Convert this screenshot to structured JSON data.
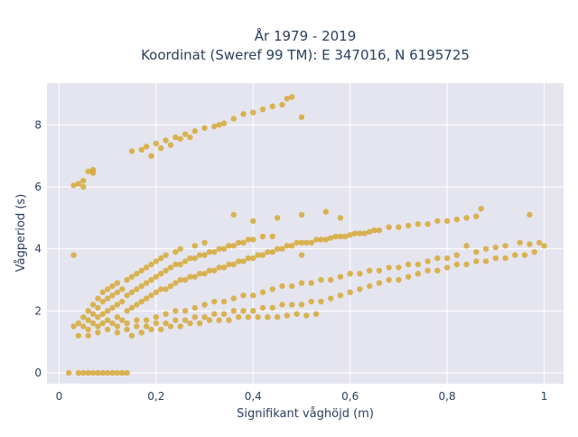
{
  "chart_data": {
    "type": "scatter",
    "title": "År 1979 - 2019",
    "subtitle": "Koordinat (Sweref 99 TM): E 347016, N 6195725",
    "xlabel": "Signifikant våghöjd (m)",
    "ylabel": "Vågperiod (s)",
    "xlim": [
      -0.025,
      1.04
    ],
    "ylim": [
      -0.35,
      9.35
    ],
    "x_ticks": [
      0,
      0.2,
      0.4,
      0.6,
      0.8,
      1
    ],
    "x_tick_labels": [
      "0",
      "0,2",
      "0,4",
      "0,6",
      "0,8",
      "1"
    ],
    "y_ticks": [
      0,
      2,
      4,
      6,
      8
    ],
    "y_tick_labels": [
      "0",
      "2",
      "4",
      "6",
      "8"
    ],
    "grid": true,
    "marker_color": "#d4a52b",
    "background_color": "#e5e5ef",
    "series": [
      {
        "points": [
          [
            0.02,
            0.0
          ],
          [
            0.04,
            0.0
          ],
          [
            0.05,
            0.0
          ],
          [
            0.06,
            0.0
          ],
          [
            0.07,
            0.0
          ],
          [
            0.08,
            0.0
          ],
          [
            0.09,
            0.0
          ],
          [
            0.1,
            0.0
          ],
          [
            0.11,
            0.0
          ],
          [
            0.12,
            0.0
          ],
          [
            0.13,
            0.0
          ],
          [
            0.14,
            0.0
          ],
          [
            0.03,
            6.05
          ],
          [
            0.04,
            6.1
          ],
          [
            0.05,
            6.0
          ],
          [
            0.05,
            6.2
          ],
          [
            0.06,
            6.5
          ],
          [
            0.07,
            6.45
          ],
          [
            0.07,
            6.55
          ],
          [
            0.03,
            3.8
          ],
          [
            0.15,
            7.15
          ],
          [
            0.17,
            7.2
          ],
          [
            0.18,
            7.3
          ],
          [
            0.2,
            7.4
          ],
          [
            0.22,
            7.5
          ],
          [
            0.24,
            7.6
          ],
          [
            0.25,
            7.55
          ],
          [
            0.26,
            7.7
          ],
          [
            0.28,
            7.8
          ],
          [
            0.3,
            7.9
          ],
          [
            0.32,
            7.95
          ],
          [
            0.34,
            8.05
          ],
          [
            0.36,
            8.2
          ],
          [
            0.38,
            8.35
          ],
          [
            0.4,
            8.4
          ],
          [
            0.42,
            8.5
          ],
          [
            0.44,
            8.6
          ],
          [
            0.46,
            8.65
          ],
          [
            0.47,
            8.85
          ],
          [
            0.48,
            8.9
          ],
          [
            0.5,
            8.25
          ],
          [
            0.19,
            7.0
          ],
          [
            0.21,
            7.25
          ],
          [
            0.23,
            7.35
          ],
          [
            0.27,
            7.6
          ],
          [
            0.33,
            8.0
          ],
          [
            0.05,
            1.5
          ],
          [
            0.05,
            1.8
          ],
          [
            0.06,
            1.4
          ],
          [
            0.06,
            1.7
          ],
          [
            0.06,
            2.0
          ],
          [
            0.07,
            1.6
          ],
          [
            0.07,
            1.9
          ],
          [
            0.07,
            2.2
          ],
          [
            0.08,
            1.5
          ],
          [
            0.08,
            1.8
          ],
          [
            0.08,
            2.1
          ],
          [
            0.08,
            2.4
          ],
          [
            0.09,
            1.6
          ],
          [
            0.09,
            1.9
          ],
          [
            0.09,
            2.3
          ],
          [
            0.09,
            2.6
          ],
          [
            0.1,
            1.7
          ],
          [
            0.1,
            2.0
          ],
          [
            0.1,
            2.4
          ],
          [
            0.1,
            2.7
          ],
          [
            0.11,
            1.6
          ],
          [
            0.11,
            2.1
          ],
          [
            0.11,
            2.5
          ],
          [
            0.11,
            2.8
          ],
          [
            0.12,
            1.8
          ],
          [
            0.12,
            2.2
          ],
          [
            0.12,
            2.6
          ],
          [
            0.12,
            2.9
          ],
          [
            0.13,
            1.7
          ],
          [
            0.13,
            2.3
          ],
          [
            0.13,
            2.7
          ],
          [
            0.14,
            2.0
          ],
          [
            0.14,
            2.5
          ],
          [
            0.14,
            3.0
          ],
          [
            0.15,
            2.1
          ],
          [
            0.15,
            2.6
          ],
          [
            0.15,
            3.1
          ],
          [
            0.16,
            2.2
          ],
          [
            0.16,
            2.7
          ],
          [
            0.16,
            3.2
          ],
          [
            0.17,
            2.3
          ],
          [
            0.17,
            2.8
          ],
          [
            0.17,
            3.3
          ],
          [
            0.18,
            2.4
          ],
          [
            0.18,
            2.9
          ],
          [
            0.18,
            3.4
          ],
          [
            0.19,
            2.5
          ],
          [
            0.19,
            3.0
          ],
          [
            0.19,
            3.5
          ],
          [
            0.2,
            2.6
          ],
          [
            0.2,
            3.1
          ],
          [
            0.2,
            3.6
          ],
          [
            0.21,
            2.7
          ],
          [
            0.21,
            3.2
          ],
          [
            0.21,
            3.7
          ],
          [
            0.22,
            2.7
          ],
          [
            0.22,
            3.3
          ],
          [
            0.22,
            3.8
          ],
          [
            0.23,
            2.8
          ],
          [
            0.23,
            3.4
          ],
          [
            0.24,
            2.9
          ],
          [
            0.24,
            3.5
          ],
          [
            0.24,
            3.9
          ],
          [
            0.25,
            3.0
          ],
          [
            0.25,
            3.5
          ],
          [
            0.25,
            4.0
          ],
          [
            0.26,
            3.0
          ],
          [
            0.26,
            3.6
          ],
          [
            0.27,
            3.1
          ],
          [
            0.27,
            3.7
          ],
          [
            0.28,
            3.1
          ],
          [
            0.28,
            3.7
          ],
          [
            0.28,
            4.1
          ],
          [
            0.29,
            3.2
          ],
          [
            0.29,
            3.8
          ],
          [
            0.3,
            3.2
          ],
          [
            0.3,
            3.8
          ],
          [
            0.3,
            4.2
          ],
          [
            0.31,
            3.3
          ],
          [
            0.31,
            3.9
          ],
          [
            0.32,
            3.3
          ],
          [
            0.32,
            3.9
          ],
          [
            0.33,
            3.4
          ],
          [
            0.33,
            4.0
          ],
          [
            0.34,
            3.4
          ],
          [
            0.34,
            4.0
          ],
          [
            0.35,
            3.5
          ],
          [
            0.35,
            4.1
          ],
          [
            0.36,
            3.5
          ],
          [
            0.36,
            4.1
          ],
          [
            0.37,
            3.6
          ],
          [
            0.37,
            4.2
          ],
          [
            0.38,
            3.6
          ],
          [
            0.38,
            4.2
          ],
          [
            0.39,
            3.7
          ],
          [
            0.39,
            4.3
          ],
          [
            0.4,
            3.7
          ],
          [
            0.4,
            4.3
          ],
          [
            0.41,
            3.8
          ],
          [
            0.42,
            3.8
          ],
          [
            0.42,
            4.4
          ],
          [
            0.43,
            3.9
          ],
          [
            0.44,
            3.9
          ],
          [
            0.44,
            4.4
          ],
          [
            0.45,
            4.0
          ],
          [
            0.46,
            4.0
          ],
          [
            0.47,
            4.1
          ],
          [
            0.48,
            4.1
          ],
          [
            0.49,
            4.2
          ],
          [
            0.5,
            4.2
          ],
          [
            0.5,
            3.8
          ],
          [
            0.51,
            4.2
          ],
          [
            0.52,
            4.2
          ],
          [
            0.53,
            4.3
          ],
          [
            0.54,
            4.3
          ],
          [
            0.55,
            4.3
          ],
          [
            0.56,
            4.35
          ],
          [
            0.57,
            4.4
          ],
          [
            0.58,
            4.4
          ],
          [
            0.59,
            4.4
          ],
          [
            0.6,
            4.45
          ],
          [
            0.61,
            4.5
          ],
          [
            0.62,
            4.5
          ],
          [
            0.63,
            4.5
          ],
          [
            0.64,
            4.55
          ],
          [
            0.65,
            4.6
          ],
          [
            0.66,
            4.6
          ],
          [
            0.68,
            4.7
          ],
          [
            0.7,
            4.7
          ],
          [
            0.72,
            4.75
          ],
          [
            0.74,
            4.8
          ],
          [
            0.76,
            4.8
          ],
          [
            0.78,
            4.9
          ],
          [
            0.8,
            4.9
          ],
          [
            0.82,
            4.95
          ],
          [
            0.84,
            5.0
          ],
          [
            0.86,
            5.05
          ],
          [
            0.45,
            5.0
          ],
          [
            0.5,
            5.1
          ],
          [
            0.55,
            5.2
          ],
          [
            0.58,
            5.0
          ],
          [
            0.4,
            4.9
          ],
          [
            0.36,
            5.1
          ],
          [
            0.87,
            5.3
          ],
          [
            0.97,
            5.1
          ],
          [
            0.12,
            1.3
          ],
          [
            0.14,
            1.4
          ],
          [
            0.16,
            1.5
          ],
          [
            0.18,
            1.5
          ],
          [
            0.2,
            1.6
          ],
          [
            0.22,
            1.6
          ],
          [
            0.24,
            1.7
          ],
          [
            0.26,
            1.7
          ],
          [
            0.28,
            1.8
          ],
          [
            0.3,
            1.8
          ],
          [
            0.32,
            1.9
          ],
          [
            0.34,
            1.9
          ],
          [
            0.36,
            2.0
          ],
          [
            0.38,
            2.0
          ],
          [
            0.4,
            2.0
          ],
          [
            0.42,
            2.1
          ],
          [
            0.44,
            2.1
          ],
          [
            0.46,
            2.2
          ],
          [
            0.48,
            2.2
          ],
          [
            0.5,
            2.2
          ],
          [
            0.52,
            2.3
          ],
          [
            0.54,
            2.3
          ],
          [
            0.56,
            2.4
          ],
          [
            0.58,
            2.5
          ],
          [
            0.6,
            2.6
          ],
          [
            0.62,
            2.7
          ],
          [
            0.64,
            2.8
          ],
          [
            0.66,
            2.9
          ],
          [
            0.68,
            3.0
          ],
          [
            0.7,
            3.0
          ],
          [
            0.72,
            3.1
          ],
          [
            0.74,
            3.2
          ],
          [
            0.76,
            3.3
          ],
          [
            0.78,
            3.3
          ],
          [
            0.8,
            3.4
          ],
          [
            0.82,
            3.5
          ],
          [
            0.84,
            3.5
          ],
          [
            0.86,
            3.6
          ],
          [
            0.88,
            3.6
          ],
          [
            0.9,
            3.7
          ],
          [
            0.92,
            3.7
          ],
          [
            0.94,
            3.8
          ],
          [
            0.96,
            3.8
          ],
          [
            0.98,
            3.9
          ],
          [
            1.0,
            4.1
          ],
          [
            0.9,
            4.05
          ],
          [
            0.92,
            4.1
          ],
          [
            0.95,
            4.2
          ],
          [
            0.97,
            4.15
          ],
          [
            0.99,
            4.2
          ],
          [
            0.86,
            3.9
          ],
          [
            0.88,
            4.0
          ],
          [
            0.84,
            4.1
          ],
          [
            0.82,
            3.8
          ],
          [
            0.8,
            3.7
          ],
          [
            0.78,
            3.7
          ],
          [
            0.76,
            3.6
          ],
          [
            0.74,
            3.5
          ],
          [
            0.72,
            3.5
          ],
          [
            0.7,
            3.4
          ],
          [
            0.68,
            3.4
          ],
          [
            0.66,
            3.3
          ],
          [
            0.64,
            3.3
          ],
          [
            0.62,
            3.2
          ],
          [
            0.6,
            3.2
          ],
          [
            0.58,
            3.1
          ],
          [
            0.56,
            3.0
          ],
          [
            0.54,
            3.0
          ],
          [
            0.52,
            2.9
          ],
          [
            0.5,
            2.9
          ],
          [
            0.48,
            2.8
          ],
          [
            0.46,
            2.8
          ],
          [
            0.44,
            2.7
          ],
          [
            0.42,
            2.6
          ],
          [
            0.4,
            2.5
          ],
          [
            0.38,
            2.5
          ],
          [
            0.36,
            2.4
          ],
          [
            0.34,
            2.3
          ],
          [
            0.32,
            2.3
          ],
          [
            0.3,
            2.2
          ],
          [
            0.28,
            2.1
          ],
          [
            0.26,
            2.0
          ],
          [
            0.24,
            2.0
          ],
          [
            0.22,
            1.9
          ],
          [
            0.2,
            1.8
          ],
          [
            0.18,
            1.7
          ],
          [
            0.16,
            1.7
          ],
          [
            0.14,
            1.6
          ],
          [
            0.12,
            1.5
          ],
          [
            0.1,
            1.4
          ],
          [
            0.08,
            1.3
          ],
          [
            0.06,
            1.2
          ],
          [
            0.04,
            1.2
          ],
          [
            0.04,
            1.6
          ],
          [
            0.03,
            1.5
          ],
          [
            0.15,
            1.2
          ],
          [
            0.17,
            1.3
          ],
          [
            0.19,
            1.4
          ],
          [
            0.21,
            1.4
          ],
          [
            0.23,
            1.5
          ],
          [
            0.25,
            1.5
          ],
          [
            0.27,
            1.6
          ],
          [
            0.29,
            1.6
          ],
          [
            0.31,
            1.7
          ],
          [
            0.33,
            1.7
          ],
          [
            0.35,
            1.7
          ],
          [
            0.37,
            1.8
          ],
          [
            0.39,
            1.8
          ],
          [
            0.41,
            1.8
          ],
          [
            0.43,
            1.8
          ],
          [
            0.45,
            1.8
          ],
          [
            0.47,
            1.85
          ],
          [
            0.49,
            1.9
          ],
          [
            0.51,
            1.85
          ],
          [
            0.53,
            1.9
          ]
        ]
      }
    ]
  }
}
